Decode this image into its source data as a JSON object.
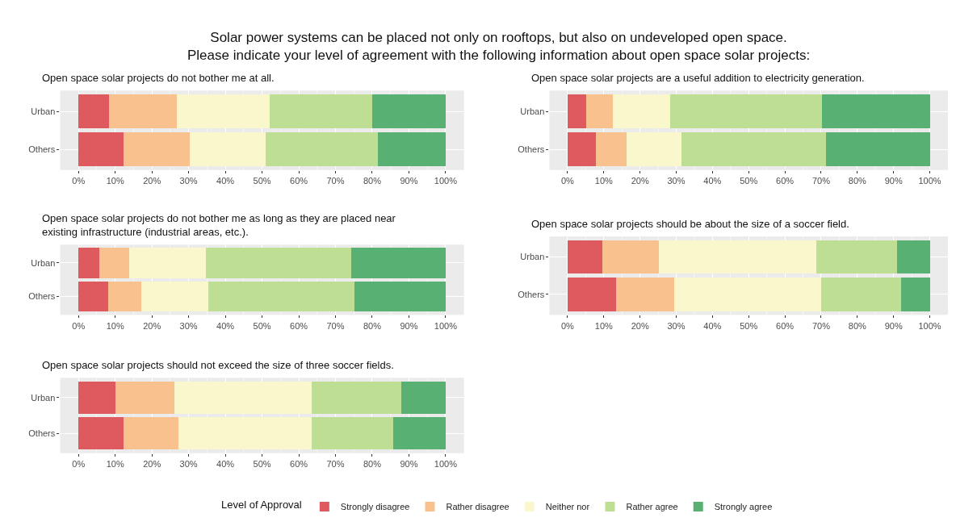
{
  "chart_data": [
    {
      "type": "bar",
      "orientation": "horizontal",
      "stacked": true,
      "title": "Open space solar projects do not bother me at all.",
      "annotations": [
        "Solar power systems can be placed not only on rooftops, but also on undeveloped open space.",
        "Please indicate your level of agreement with the following information about open space solar projects:"
      ],
      "legend_title": "Level of Approval",
      "legend": "bottom",
      "grid": true,
      "categories": [
        "Urban",
        "Others"
      ],
      "xlim": [
        -5,
        105
      ],
      "xticks": [
        {
          "value": 0,
          "label": "0%"
        },
        {
          "value": 10,
          "label": "10%"
        },
        {
          "value": 20,
          "label": "20%"
        },
        {
          "value": 30,
          "label": "30%"
        },
        {
          "value": 40,
          "label": "40%"
        },
        {
          "value": 50,
          "label": "50%"
        },
        {
          "value": 60,
          "label": "60%"
        },
        {
          "value": 70,
          "label": "70%"
        },
        {
          "value": 80,
          "label": "80%"
        },
        {
          "value": 90,
          "label": "90%"
        },
        {
          "value": 100,
          "label": "100%"
        }
      ],
      "series": [
        {
          "name": "Strongly disagree",
          "color": "#df5a5e",
          "values": [
            8.3,
            12.3
          ]
        },
        {
          "name": "Rather disagree",
          "color": "#f8c18d",
          "values": [
            18.5,
            18.0
          ]
        },
        {
          "name": "Neither nor",
          "color": "#fbf7cc",
          "values": [
            25.2,
            20.7
          ]
        },
        {
          "name": "Rather agree",
          "color": "#bedf93",
          "values": [
            28.0,
            30.6
          ]
        },
        {
          "name": "Strongly agree",
          "color": "#58b073",
          "values": [
            20.0,
            18.4
          ]
        }
      ]
    },
    {
      "type": "bar",
      "orientation": "horizontal",
      "stacked": true,
      "title": "Open space solar projects are a useful addition to electricity generation.",
      "grid": true,
      "categories": [
        "Urban",
        "Others"
      ],
      "xlim": [
        -5,
        105
      ],
      "xticks": [
        {
          "value": 0,
          "label": "0%"
        },
        {
          "value": 10,
          "label": "10%"
        },
        {
          "value": 20,
          "label": "20%"
        },
        {
          "value": 30,
          "label": "30%"
        },
        {
          "value": 40,
          "label": "40%"
        },
        {
          "value": 50,
          "label": "50%"
        },
        {
          "value": 60,
          "label": "60%"
        },
        {
          "value": 70,
          "label": "70%"
        },
        {
          "value": 80,
          "label": "80%"
        },
        {
          "value": 90,
          "label": "90%"
        },
        {
          "value": 100,
          "label": "100%"
        }
      ],
      "series": [
        {
          "color": "#df5a5e",
          "values": [
            5.2,
            7.9
          ]
        },
        {
          "color": "#f8c18d",
          "values": [
            7.3,
            8.3
          ]
        },
        {
          "color": "#fbf7cc",
          "values": [
            15.8,
            15.2
          ]
        },
        {
          "color": "#bedf93",
          "values": [
            41.9,
            39.9
          ]
        },
        {
          "color": "#58b073",
          "values": [
            29.8,
            28.7
          ]
        }
      ]
    },
    {
      "type": "bar",
      "orientation": "horizontal",
      "stacked": true,
      "title": "Open space solar projects do not bother me as long as they are placed near\nexisting infrastructure (industrial areas, etc.).",
      "grid": true,
      "categories": [
        "Urban",
        "Others"
      ],
      "xlim": [
        -5,
        105
      ],
      "xticks": [
        {
          "value": 0,
          "label": "0%"
        },
        {
          "value": 10,
          "label": "10%"
        },
        {
          "value": 20,
          "label": "20%"
        },
        {
          "value": 30,
          "label": "30%"
        },
        {
          "value": 40,
          "label": "40%"
        },
        {
          "value": 50,
          "label": "50%"
        },
        {
          "value": 60,
          "label": "60%"
        },
        {
          "value": 70,
          "label": "70%"
        },
        {
          "value": 80,
          "label": "80%"
        },
        {
          "value": 90,
          "label": "90%"
        },
        {
          "value": 100,
          "label": "100%"
        }
      ],
      "series": [
        {
          "color": "#df5a5e",
          "values": [
            5.7,
            8.1
          ]
        },
        {
          "color": "#f8c18d",
          "values": [
            8.0,
            9.1
          ]
        },
        {
          "color": "#fbf7cc",
          "values": [
            21.0,
            18.2
          ]
        },
        {
          "color": "#bedf93",
          "values": [
            39.6,
            39.7
          ]
        },
        {
          "color": "#58b073",
          "values": [
            25.7,
            24.9
          ]
        }
      ]
    },
    {
      "type": "bar",
      "orientation": "horizontal",
      "stacked": true,
      "title": "Open space solar projects should be about the size of a soccer field.",
      "grid": true,
      "categories": [
        "Urban",
        "Others"
      ],
      "xlim": [
        -5,
        105
      ],
      "xticks": [
        {
          "value": 0,
          "label": "0%"
        },
        {
          "value": 10,
          "label": "10%"
        },
        {
          "value": 20,
          "label": "20%"
        },
        {
          "value": 30,
          "label": "30%"
        },
        {
          "value": 40,
          "label": "40%"
        },
        {
          "value": 50,
          "label": "50%"
        },
        {
          "value": 60,
          "label": "60%"
        },
        {
          "value": 70,
          "label": "70%"
        },
        {
          "value": 80,
          "label": "80%"
        },
        {
          "value": 90,
          "label": "90%"
        },
        {
          "value": 100,
          "label": "100%"
        }
      ],
      "series": [
        {
          "color": "#df5a5e",
          "values": [
            9.7,
            13.4
          ]
        },
        {
          "color": "#f8c18d",
          "values": [
            15.4,
            16.1
          ]
        },
        {
          "color": "#fbf7cc",
          "values": [
            43.6,
            40.5
          ]
        },
        {
          "color": "#bedf93",
          "values": [
            22.3,
            22.0
          ]
        },
        {
          "color": "#58b073",
          "values": [
            9.0,
            8.0
          ]
        }
      ]
    },
    {
      "type": "bar",
      "orientation": "horizontal",
      "stacked": true,
      "title": "Open space solar projects should not exceed the size of three soccer fields.",
      "grid": true,
      "categories": [
        "Urban",
        "Others"
      ],
      "xlim": [
        -5,
        105
      ],
      "xticks": [
        {
          "value": 0,
          "label": "0%"
        },
        {
          "value": 10,
          "label": "10%"
        },
        {
          "value": 20,
          "label": "20%"
        },
        {
          "value": 30,
          "label": "30%"
        },
        {
          "value": 40,
          "label": "40%"
        },
        {
          "value": 50,
          "label": "50%"
        },
        {
          "value": 60,
          "label": "60%"
        },
        {
          "value": 70,
          "label": "70%"
        },
        {
          "value": 80,
          "label": "80%"
        },
        {
          "value": 90,
          "label": "90%"
        },
        {
          "value": 100,
          "label": "100%"
        }
      ],
      "series": [
        {
          "color": "#df5a5e",
          "values": [
            10.0,
            12.3
          ]
        },
        {
          "color": "#f8c18d",
          "values": [
            16.1,
            14.9
          ]
        },
        {
          "color": "#fbf7cc",
          "values": [
            37.3,
            36.2
          ]
        },
        {
          "color": "#bedf93",
          "values": [
            24.6,
            22.4
          ]
        },
        {
          "color": "#58b073",
          "values": [
            12.0,
            14.2
          ]
        }
      ]
    }
  ]
}
